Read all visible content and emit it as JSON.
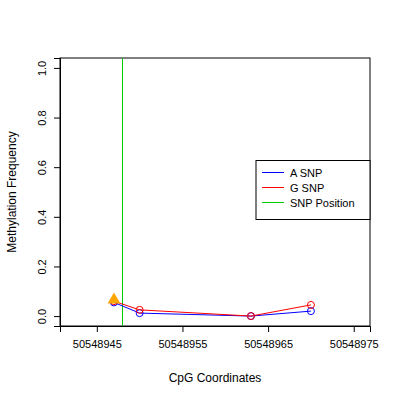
{
  "chart_data": {
    "type": "line",
    "x_label": "CpG Coordinates",
    "y_label": "Methylation Frequency",
    "x": [
      50548947,
      50548950,
      50548963,
      50548970
    ],
    "series": [
      {
        "name": "A SNP",
        "color": "#0000ff",
        "marker": "circle",
        "values": [
          0.055,
          0.012,
          0.0,
          0.02
        ]
      },
      {
        "name": "G SNP",
        "color": "#ff0000",
        "marker": "circle",
        "values": [
          0.06,
          0.025,
          0.0,
          0.045
        ]
      }
    ],
    "vline": {
      "name": "SNP Position",
      "color": "#00cc00",
      "x": 50548948
    },
    "highlight": {
      "x": 50548947,
      "y": 0.065,
      "color": "#ffa500",
      "marker": "triangle"
    },
    "xlim": [
      50548940.7,
      50548976.9
    ],
    "xticks": [
      50548945,
      50548955,
      50548965,
      50548975
    ],
    "ylim": [
      -0.04,
      1.04
    ],
    "yticks": [
      {
        "value": 0,
        "label": "0.0"
      },
      0.2,
      0.4,
      0.6,
      0.8,
      {
        "value": 1,
        "label": "1.0"
      }
    ],
    "legend": "right",
    "grid": false
  }
}
